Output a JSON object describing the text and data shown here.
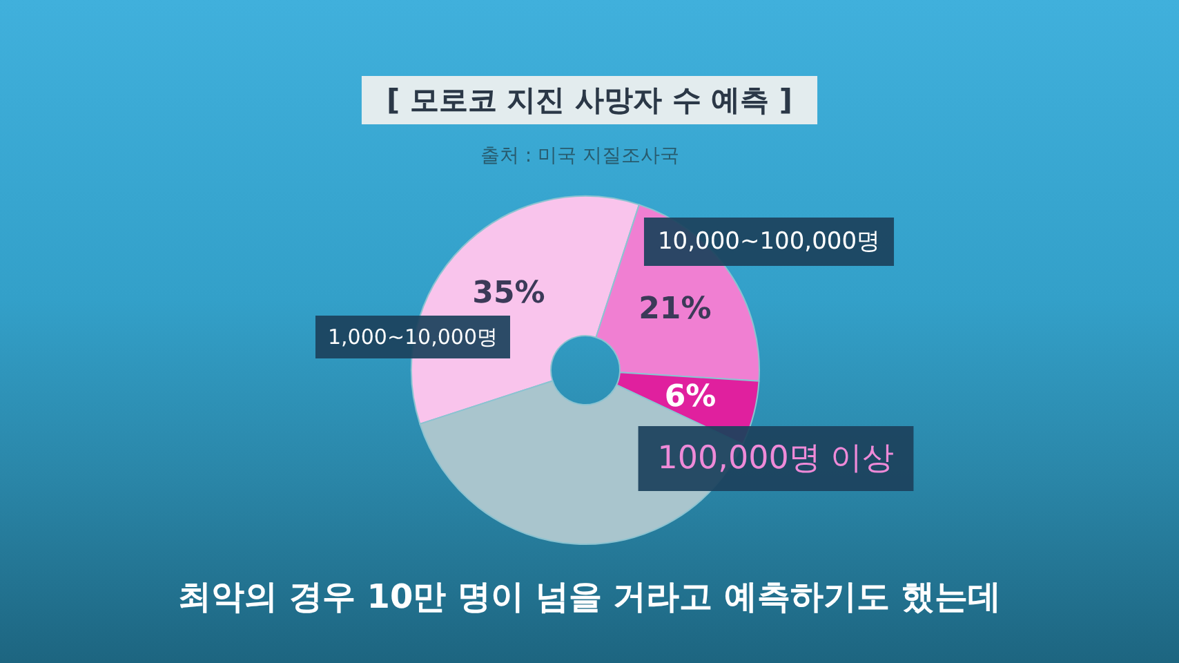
{
  "chart_data": {
    "type": "donut",
    "title": "[ 모로코 지진 사망자 수 예측 ]",
    "categories": [
      "1,000~10,000명",
      "10,000~100,000명",
      "100,000명 이상",
      null
    ],
    "values": [
      35,
      21,
      6,
      38
    ],
    "colors": [
      "#f9c4ec",
      "#f07fd2",
      "#e0209e",
      "#a9c5cd"
    ],
    "value_labels": [
      "35%",
      "21%",
      "6%",
      null
    ],
    "annotations": [
      "출처 : 미국 지질조사국",
      "최악의 경우 10만 명이 넘을 거라고 예측하기도 했는데"
    ]
  }
}
